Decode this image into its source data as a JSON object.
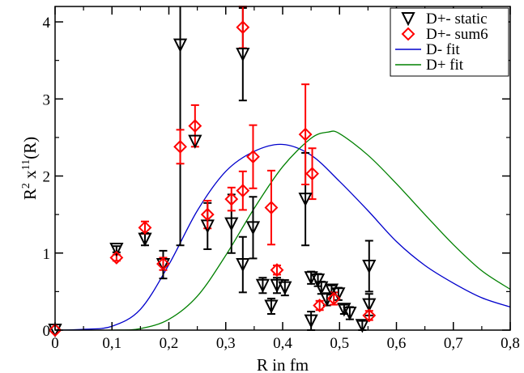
{
  "chart_data": {
    "type": "scatter",
    "title": "",
    "xlabel": "R in fm",
    "ylabel": {
      "base": "R",
      "sup1": "2",
      "mid": " x",
      "sup2": "11",
      "tail": "(R)"
    },
    "xlim": [
      0,
      0.8
    ],
    "ylim": [
      0,
      4.2
    ],
    "x_ticks": [
      0,
      0.1,
      0.2,
      0.3,
      0.4,
      0.5,
      0.6,
      0.7,
      0.8
    ],
    "x_tick_labels": [
      "0",
      "0,1",
      "0,2",
      "0,3",
      "0,4",
      "0,5",
      "0,6",
      "0,7",
      "0,8"
    ],
    "y_ticks": [
      0,
      1,
      2,
      3,
      4
    ],
    "y_tick_labels": [
      "0",
      "1",
      "2",
      "3",
      "4"
    ],
    "grid": false,
    "legend_position": "top-right",
    "series": [
      {
        "name": "D+- static",
        "kind": "points",
        "marker": "triangle-down",
        "color": "#000000",
        "points": [
          {
            "x": 0.0,
            "y": 0.0,
            "err": 0.0
          },
          {
            "x": 0.108,
            "y": 1.05,
            "err": 0.04
          },
          {
            "x": 0.158,
            "y": 1.18,
            "err": 0.08
          },
          {
            "x": 0.19,
            "y": 0.85,
            "err": 0.18
          },
          {
            "x": 0.22,
            "y": 3.7,
            "err": 2.6
          },
          {
            "x": 0.246,
            "y": 2.45,
            "err": 0.0
          },
          {
            "x": 0.268,
            "y": 1.35,
            "err": 0.3
          },
          {
            "x": 0.31,
            "y": 1.38,
            "err": 0.38
          },
          {
            "x": 0.33,
            "y": 3.58,
            "err": 0.6
          },
          {
            "x": 0.33,
            "y": 0.85,
            "err": 0.36
          },
          {
            "x": 0.348,
            "y": 1.33,
            "err": 0.4
          },
          {
            "x": 0.365,
            "y": 0.58,
            "err": 0.1
          },
          {
            "x": 0.38,
            "y": 0.31,
            "err": 0.1
          },
          {
            "x": 0.39,
            "y": 0.58,
            "err": 0.1
          },
          {
            "x": 0.404,
            "y": 0.55,
            "err": 0.1
          },
          {
            "x": 0.44,
            "y": 1.7,
            "err": 0.6
          },
          {
            "x": 0.45,
            "y": 0.68,
            "err": 0.08
          },
          {
            "x": 0.45,
            "y": 0.12,
            "err": 0.12
          },
          {
            "x": 0.462,
            "y": 0.65,
            "err": 0.08
          },
          {
            "x": 0.468,
            "y": 0.55,
            "err": 0.08
          },
          {
            "x": 0.478,
            "y": 0.4,
            "err": 0.08
          },
          {
            "x": 0.486,
            "y": 0.52,
            "err": 0.06
          },
          {
            "x": 0.498,
            "y": 0.47,
            "err": 0.08
          },
          {
            "x": 0.508,
            "y": 0.27,
            "err": 0.06
          },
          {
            "x": 0.518,
            "y": 0.22,
            "err": 0.08
          },
          {
            "x": 0.54,
            "y": 0.06,
            "err": 0.06
          },
          {
            "x": 0.552,
            "y": 0.83,
            "err": 0.33
          },
          {
            "x": 0.552,
            "y": 0.33,
            "err": 0.14
          }
        ]
      },
      {
        "name": "D+- sum6",
        "kind": "points",
        "marker": "diamond",
        "color": "#ff0000",
        "points": [
          {
            "x": 0.0,
            "y": 0.0,
            "err": 0.0
          },
          {
            "x": 0.108,
            "y": 0.94,
            "err": 0.04
          },
          {
            "x": 0.158,
            "y": 1.33,
            "err": 0.08
          },
          {
            "x": 0.19,
            "y": 0.86,
            "err": 0.08
          },
          {
            "x": 0.22,
            "y": 2.38,
            "err": 0.22
          },
          {
            "x": 0.246,
            "y": 2.65,
            "err": 0.27
          },
          {
            "x": 0.268,
            "y": 1.5,
            "err": 0.18
          },
          {
            "x": 0.31,
            "y": 1.7,
            "err": 0.15
          },
          {
            "x": 0.33,
            "y": 3.93,
            "err": 0.27
          },
          {
            "x": 0.33,
            "y": 1.81,
            "err": 0.25
          },
          {
            "x": 0.348,
            "y": 2.25,
            "err": 0.41
          },
          {
            "x": 0.38,
            "y": 1.59,
            "err": 0.48
          },
          {
            "x": 0.39,
            "y": 0.78,
            "err": 0.06
          },
          {
            "x": 0.44,
            "y": 2.54,
            "err": 0.65
          },
          {
            "x": 0.452,
            "y": 2.03,
            "err": 0.33
          },
          {
            "x": 0.465,
            "y": 0.32,
            "err": 0.06
          },
          {
            "x": 0.49,
            "y": 0.41,
            "err": 0.08
          },
          {
            "x": 0.552,
            "y": 0.19,
            "err": 0.06
          }
        ]
      },
      {
        "name": "D- fit",
        "kind": "line",
        "color": "#0000cc",
        "x": [
          0.0,
          0.05,
          0.1,
          0.15,
          0.2,
          0.25,
          0.3,
          0.35,
          0.4,
          0.45,
          0.5,
          0.55,
          0.6,
          0.65,
          0.7,
          0.75,
          0.8
        ],
        "y": [
          0.0,
          0.01,
          0.05,
          0.27,
          0.85,
          1.55,
          2.06,
          2.32,
          2.41,
          2.27,
          1.93,
          1.55,
          1.15,
          0.84,
          0.61,
          0.42,
          0.3
        ]
      },
      {
        "name": "D+ fit",
        "kind": "line",
        "color": "#008000",
        "x": [
          0.0,
          0.1,
          0.15,
          0.2,
          0.25,
          0.3,
          0.35,
          0.4,
          0.45,
          0.48,
          0.5,
          0.55,
          0.6,
          0.65,
          0.7,
          0.75,
          0.8
        ],
        "y": [
          0.0,
          0.0,
          0.02,
          0.14,
          0.44,
          0.97,
          1.58,
          2.12,
          2.49,
          2.57,
          2.55,
          2.27,
          1.9,
          1.5,
          1.11,
          0.77,
          0.53
        ]
      }
    ]
  }
}
